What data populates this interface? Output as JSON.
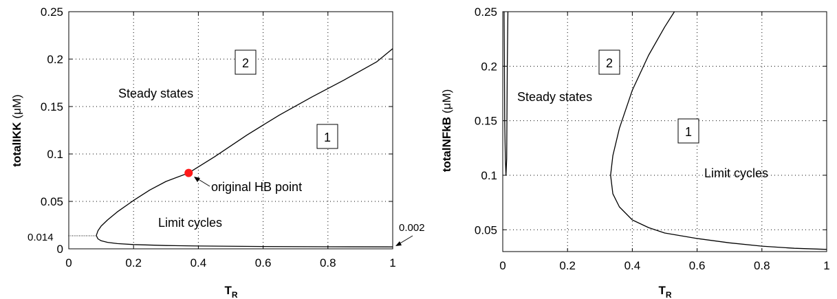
{
  "chart_data": [
    {
      "type": "line",
      "xlabel": "T",
      "xlabel_sub": "R",
      "ylabel": "totalIKK",
      "ylabel_unit": "(μM)",
      "xlim": [
        0,
        1
      ],
      "ylim": [
        0,
        0.25
      ],
      "xticks": [
        "0",
        "0.2",
        "0.4",
        "0.6",
        "0.8",
        "1"
      ],
      "yticks": [
        "0",
        "0.05",
        "0.1",
        "0.15",
        "0.2",
        "0.25"
      ],
      "grid": true,
      "series": [
        {
          "x": [
            0.085,
            0.09,
            0.1,
            0.12,
            0.15,
            0.2,
            0.25,
            0.3,
            0.37,
            0.45,
            0.55,
            0.65,
            0.75,
            0.85,
            0.95,
            1.0
          ],
          "y": [
            0.014,
            0.019,
            0.024,
            0.0305,
            0.039,
            0.051,
            0.062,
            0.071,
            0.08,
            0.097,
            0.12,
            0.141,
            0.16,
            0.178,
            0.197,
            0.211
          ]
        },
        {
          "x": [
            0.085,
            0.09,
            0.1,
            0.12,
            0.15,
            0.2,
            0.3,
            0.4,
            0.6,
            0.8,
            1.0
          ],
          "y": [
            0.014,
            0.0105,
            0.0085,
            0.0068,
            0.0055,
            0.0045,
            0.0035,
            0.003,
            0.0025,
            0.0022,
            0.002
          ]
        }
      ],
      "hb_point": {
        "x": 0.37,
        "y": 0.08
      },
      "annotations": {
        "region2": "2",
        "region1": "1",
        "steady_states": "Steady states",
        "limit_cycles": "Limit cycles",
        "hb_label": "original HB point",
        "extra_y_label": "0.014",
        "extra_right_label": "0.002"
      }
    },
    {
      "type": "line",
      "xlabel": "T",
      "xlabel_sub": "R",
      "ylabel": "totalNFkB",
      "ylabel_unit": "(μM)",
      "xlim": [
        0,
        1
      ],
      "ylim": [
        0.03,
        0.25
      ],
      "xticks": [
        "0",
        "0.2",
        "0.4",
        "0.6",
        "0.8",
        "1"
      ],
      "yticks": [
        "0.05",
        "0.1",
        "0.15",
        "0.2",
        "0.25"
      ],
      "grid": true,
      "series": [
        {
          "x": [
            0.53,
            0.5,
            0.45,
            0.4,
            0.36,
            0.34,
            0.333,
            0.34,
            0.36,
            0.4,
            0.45,
            0.5,
            0.6,
            0.7,
            0.8,
            0.9,
            1.0
          ],
          "y": [
            0.25,
            0.236,
            0.21,
            0.178,
            0.143,
            0.118,
            0.1,
            0.083,
            0.071,
            0.059,
            0.052,
            0.047,
            0.042,
            0.038,
            0.035,
            0.033,
            0.032
          ]
        },
        {
          "x": [
            0.004,
            0.005,
            0.006,
            0.008,
            0.01,
            0.012,
            0.014,
            0.016
          ],
          "y": [
            0.25,
            0.2,
            0.15,
            0.115,
            0.1,
            0.115,
            0.2,
            0.25
          ]
        }
      ],
      "annotations": {
        "region2": "2",
        "region1": "1",
        "steady_states": "Steady states",
        "limit_cycles": "Limit cycles"
      }
    }
  ]
}
